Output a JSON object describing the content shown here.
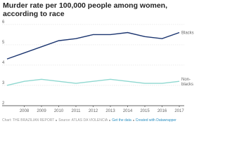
{
  "chart_data": {
    "type": "line",
    "title": "Murder rate per 100,000 people among women, according to race",
    "x": [
      2007,
      2008,
      2009,
      2010,
      2011,
      2012,
      2013,
      2014,
      2015,
      2016,
      2017
    ],
    "xlim": [
      2007,
      2017
    ],
    "xticks": [
      2008,
      2009,
      2010,
      2011,
      2012,
      2013,
      2014,
      2015,
      2016,
      2017
    ],
    "ylim": [
      2,
      6.1
    ],
    "yticks": [
      2,
      3,
      4,
      5,
      6
    ],
    "grid": true,
    "series": [
      {
        "name": "Blacks",
        "color": "#1c3670",
        "values": [
          4.3,
          4.6,
          4.9,
          5.2,
          5.3,
          5.5,
          5.5,
          5.6,
          5.4,
          5.3,
          5.6
        ]
      },
      {
        "name": "Non-blacks",
        "color": "#8fd8d0",
        "values": [
          3.0,
          3.2,
          3.3,
          3.2,
          3.1,
          3.2,
          3.3,
          3.2,
          3.1,
          3.1,
          3.2
        ]
      }
    ],
    "footer": {
      "chart": "Chart: THE BRAZILIAN REPORT",
      "source": "Source: ATLAS DA VIOLENCIA",
      "data_link": "Get the data",
      "credit": "Created with Datawrapper"
    }
  }
}
